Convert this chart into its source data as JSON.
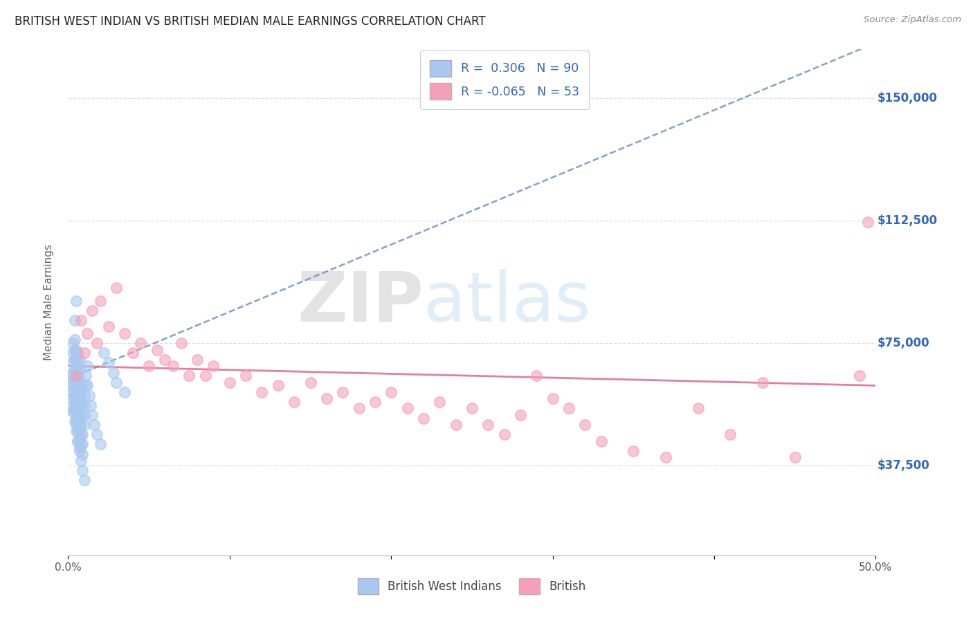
{
  "title": "BRITISH WEST INDIAN VS BRITISH MEDIAN MALE EARNINGS CORRELATION CHART",
  "source": "Source: ZipAtlas.com",
  "ylabel": "Median Male Earnings",
  "ytick_labels": [
    "$37,500",
    "$75,000",
    "$112,500",
    "$150,000"
  ],
  "ytick_values": [
    37500,
    75000,
    112500,
    150000
  ],
  "xlim": [
    0.0,
    0.5
  ],
  "ylim": [
    10000,
    165000
  ],
  "color_blue": "#A8C8F0",
  "color_pink": "#F4A0B8",
  "color_blue_line": "#7090C0",
  "color_pink_line": "#E07090",
  "color_blue_text": "#3366BB",
  "legend_label1": "British West Indians",
  "legend_label2": "British",
  "blue_scatter_x": [
    0.002,
    0.002,
    0.002,
    0.002,
    0.003,
    0.003,
    0.003,
    0.003,
    0.003,
    0.003,
    0.004,
    0.004,
    0.004,
    0.004,
    0.004,
    0.004,
    0.004,
    0.004,
    0.004,
    0.004,
    0.005,
    0.005,
    0.005,
    0.005,
    0.005,
    0.005,
    0.005,
    0.005,
    0.005,
    0.005,
    0.006,
    0.006,
    0.006,
    0.006,
    0.006,
    0.006,
    0.006,
    0.006,
    0.006,
    0.006,
    0.007,
    0.007,
    0.007,
    0.007,
    0.007,
    0.007,
    0.007,
    0.007,
    0.007,
    0.007,
    0.008,
    0.008,
    0.008,
    0.008,
    0.008,
    0.008,
    0.008,
    0.009,
    0.009,
    0.009,
    0.01,
    0.01,
    0.01,
    0.01,
    0.011,
    0.011,
    0.012,
    0.012,
    0.013,
    0.014,
    0.015,
    0.016,
    0.018,
    0.02,
    0.022,
    0.025,
    0.028,
    0.03,
    0.035,
    0.007,
    0.003,
    0.004,
    0.005,
    0.006,
    0.007,
    0.008,
    0.009,
    0.01,
    0.004,
    0.005
  ],
  "blue_scatter_y": [
    55000,
    58000,
    62000,
    65000,
    60000,
    63000,
    66000,
    69000,
    72000,
    75000,
    58000,
    61000,
    64000,
    67000,
    70000,
    73000,
    76000,
    55000,
    57000,
    59000,
    52000,
    55000,
    58000,
    61000,
    64000,
    67000,
    70000,
    73000,
    50000,
    53000,
    48000,
    51000,
    54000,
    57000,
    60000,
    63000,
    66000,
    69000,
    72000,
    45000,
    46000,
    49000,
    52000,
    55000,
    58000,
    61000,
    64000,
    67000,
    70000,
    43000,
    44000,
    47000,
    50000,
    53000,
    56000,
    59000,
    62000,
    41000,
    44000,
    47000,
    50000,
    53000,
    56000,
    59000,
    62000,
    65000,
    68000,
    62000,
    59000,
    56000,
    53000,
    50000,
    47000,
    44000,
    72000,
    69000,
    66000,
    63000,
    60000,
    57000,
    54000,
    51000,
    48000,
    45000,
    42000,
    39000,
    36000,
    33000,
    82000,
    88000
  ],
  "pink_scatter_x": [
    0.005,
    0.008,
    0.01,
    0.012,
    0.015,
    0.018,
    0.02,
    0.025,
    0.03,
    0.035,
    0.04,
    0.045,
    0.05,
    0.055,
    0.06,
    0.065,
    0.07,
    0.075,
    0.08,
    0.085,
    0.09,
    0.1,
    0.11,
    0.12,
    0.13,
    0.14,
    0.15,
    0.16,
    0.17,
    0.18,
    0.19,
    0.2,
    0.21,
    0.22,
    0.23,
    0.24,
    0.25,
    0.26,
    0.27,
    0.28,
    0.29,
    0.3,
    0.31,
    0.32,
    0.33,
    0.35,
    0.37,
    0.39,
    0.41,
    0.43,
    0.45,
    0.49,
    0.495
  ],
  "pink_scatter_y": [
    65000,
    82000,
    72000,
    78000,
    85000,
    75000,
    88000,
    80000,
    92000,
    78000,
    72000,
    75000,
    68000,
    73000,
    70000,
    68000,
    75000,
    65000,
    70000,
    65000,
    68000,
    63000,
    65000,
    60000,
    62000,
    57000,
    63000,
    58000,
    60000,
    55000,
    57000,
    60000,
    55000,
    52000,
    57000,
    50000,
    55000,
    50000,
    47000,
    53000,
    65000,
    58000,
    55000,
    50000,
    45000,
    42000,
    40000,
    55000,
    47000,
    63000,
    40000,
    65000,
    112000
  ],
  "blue_trend_x": [
    0.0,
    0.5
  ],
  "blue_trend_y": [
    64000,
    167000
  ],
  "pink_trend_x": [
    0.0,
    0.5
  ],
  "pink_trend_y": [
    68000,
    62000
  ],
  "watermark_zip": "ZIP",
  "watermark_atlas": "atlas",
  "background_color": "#FFFFFF",
  "grid_color": "#DDDDDD"
}
